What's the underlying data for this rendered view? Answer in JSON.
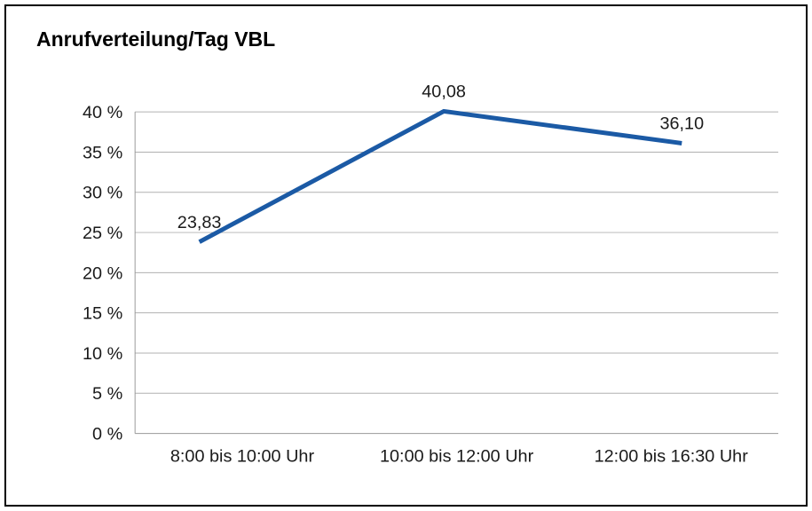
{
  "chart_data": {
    "type": "line",
    "title": "Anrufverteilung/Tag VBL",
    "categories": [
      "8:00 bis 10:00 Uhr",
      "10:00 bis 12:00 Uhr",
      "12:00 bis 16:30 Uhr"
    ],
    "values": [
      23.83,
      40.08,
      36.1
    ],
    "value_labels": [
      "23,83",
      "40,08",
      "36,10"
    ],
    "xlabel": "",
    "ylabel": "",
    "ylim": [
      0,
      40
    ],
    "y_ticks": [
      0,
      5,
      10,
      15,
      20,
      25,
      30,
      35,
      40
    ],
    "y_tick_labels": [
      "0 %",
      "5 %",
      "10 %",
      "15 %",
      "20 %",
      "25 %",
      "30 %",
      "35 %",
      "40 %"
    ],
    "grid": true,
    "legend": "none",
    "line_color": "#1b5aa5"
  }
}
